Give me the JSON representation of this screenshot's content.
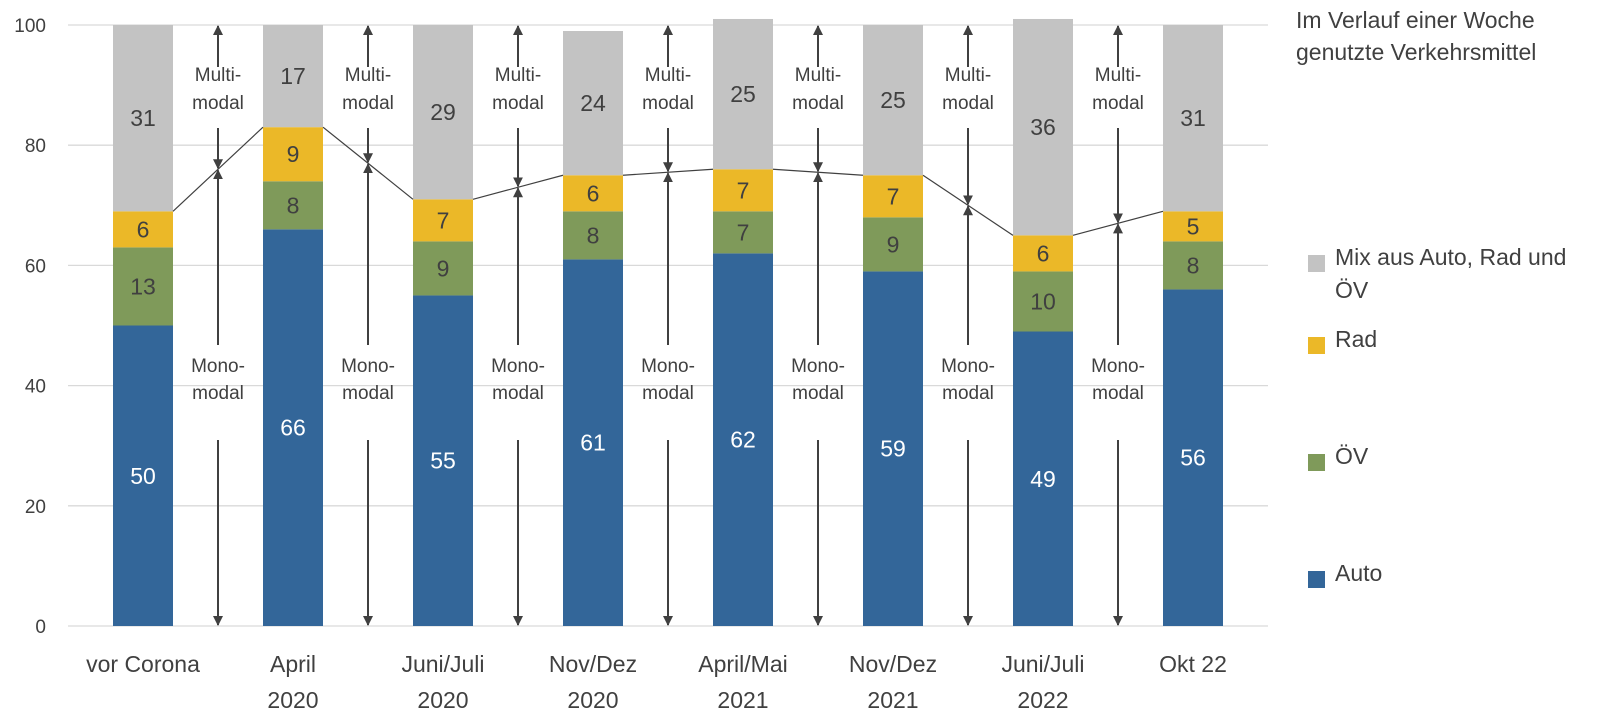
{
  "chart_data": {
    "type": "bar",
    "stacked": true,
    "categories": [
      [
        "vor Corona"
      ],
      [
        "April",
        "2020"
      ],
      [
        "Juni/Juli",
        "2020"
      ],
      [
        "Nov/Dez",
        "2020"
      ],
      [
        "April/Mai",
        "2021"
      ],
      [
        "Nov/Dez",
        "2021"
      ],
      [
        "Juni/Juli",
        "2022"
      ],
      [
        "Okt 22"
      ]
    ],
    "series": [
      {
        "name": "Auto",
        "color": "#336699",
        "label_color": "#ffffff",
        "values": [
          50,
          66,
          55,
          61,
          62,
          59,
          49,
          56
        ]
      },
      {
        "name": "ÖV",
        "color": "#7f9a5a",
        "label_color": "#404040",
        "values": [
          13,
          8,
          9,
          8,
          7,
          9,
          10,
          8
        ]
      },
      {
        "name": "Rad",
        "color": "#ebb828",
        "label_color": "#404040",
        "values": [
          6,
          9,
          7,
          6,
          7,
          7,
          6,
          5
        ]
      },
      {
        "name": "Mix aus Auto, Rad und ÖV",
        "color": "#c3c3c3",
        "label_color": "#404040",
        "values": [
          31,
          17,
          29,
          24,
          25,
          25,
          36,
          31
        ]
      }
    ],
    "yticks": [
      0,
      20,
      40,
      60,
      80,
      100
    ],
    "ylim": [
      0,
      100
    ],
    "grid": true,
    "legend_title": "Im Verlauf einer Woche genutzte Verkehrsmittel",
    "legend_position": "right",
    "annotations": {
      "multi_label": [
        "Multi-",
        "modal"
      ],
      "mono_label": [
        "Mono-",
        "modal"
      ]
    },
    "colors": {
      "axis_text": "#404040",
      "grid": "#d9d9d9",
      "arrow": "#404040",
      "connector": "#404040"
    }
  }
}
